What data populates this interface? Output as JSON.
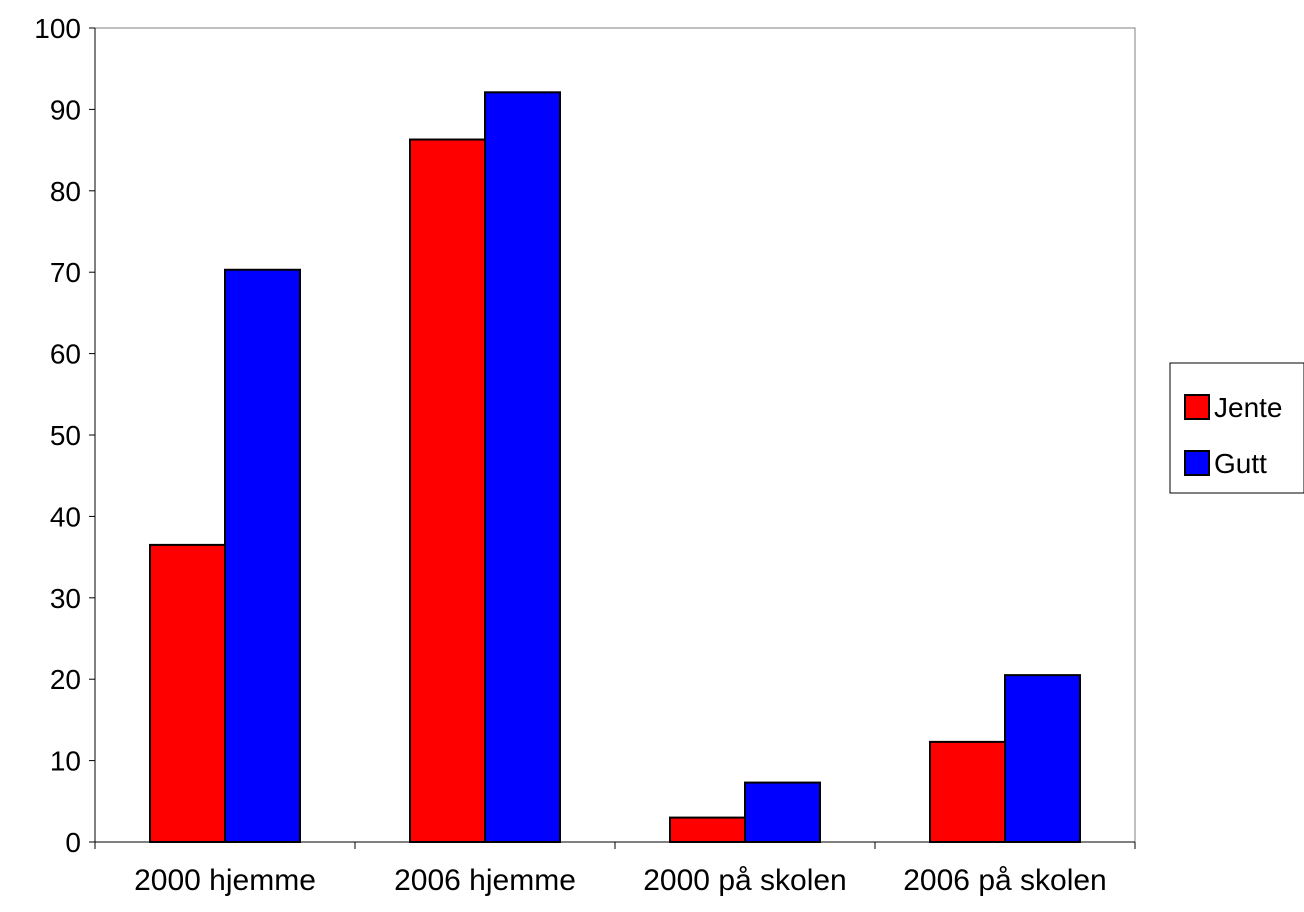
{
  "chart_data": {
    "type": "bar",
    "title": "",
    "xlabel": "",
    "ylabel": "",
    "categories": [
      "2000 hjemme",
      "2006 hjemme",
      "2000 på skolen",
      "2006 på skolen"
    ],
    "series": [
      {
        "name": "Jente",
        "color": "#ff0000",
        "values": [
          36.5,
          86.3,
          3.0,
          12.3
        ]
      },
      {
        "name": "Gutt",
        "color": "#0000ff",
        "values": [
          70.3,
          92.1,
          7.3,
          20.5
        ]
      }
    ],
    "ylim": [
      0,
      100
    ],
    "yticks": [
      "0",
      "10",
      "20",
      "30",
      "40",
      "50",
      "60",
      "70",
      "80",
      "90",
      "100"
    ],
    "grid": false,
    "legend_position": "right"
  }
}
